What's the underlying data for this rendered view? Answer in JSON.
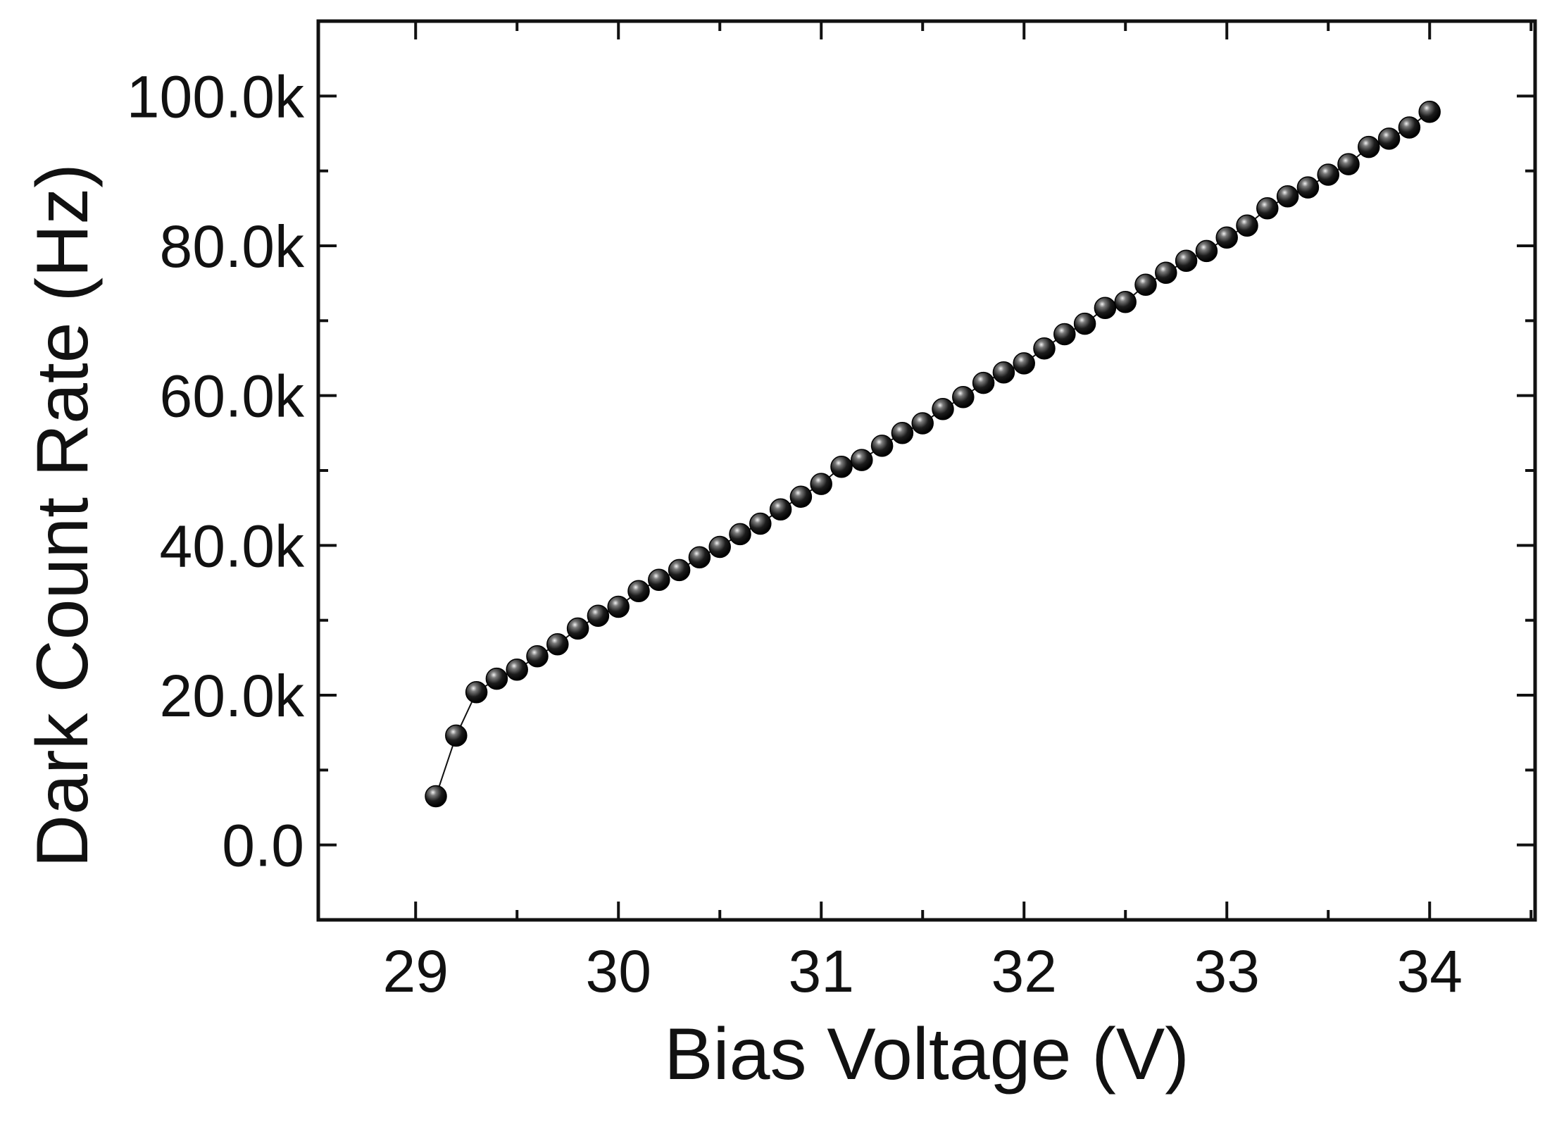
{
  "chart_data": {
    "type": "scatter",
    "title": "",
    "xlabel": "Bias Voltage (V)",
    "ylabel": "Dark Count Rate (Hz)",
    "xlim": [
      28.52,
      34.52
    ],
    "ylim": [
      -10000,
      110000
    ],
    "x_ticks": [
      {
        "value": 29,
        "label": "29"
      },
      {
        "value": 30,
        "label": "30"
      },
      {
        "value": 31,
        "label": "31"
      },
      {
        "value": 32,
        "label": "32"
      },
      {
        "value": 33,
        "label": "33"
      },
      {
        "value": 34,
        "label": "34"
      }
    ],
    "y_ticks": [
      {
        "value": 0,
        "label": "0.0"
      },
      {
        "value": 20000,
        "label": "20.0k"
      },
      {
        "value": 40000,
        "label": "40.0k"
      },
      {
        "value": 60000,
        "label": "60.0k"
      },
      {
        "value": 80000,
        "label": "80.0k"
      },
      {
        "value": 100000,
        "label": "100.0k"
      }
    ],
    "x_minor_step": 0.5,
    "y_minor_step": 10000,
    "grid": false,
    "legend": "none",
    "connecting_line": true,
    "marker": "sphere",
    "colors": {
      "marker": "#111111",
      "line": "#111111",
      "axis": "#111111"
    },
    "series": [
      {
        "x": [
          29.1,
          29.2,
          29.3,
          29.4,
          29.5,
          29.6,
          29.7,
          29.8,
          29.9,
          30.0,
          30.1,
          30.2,
          30.3,
          30.4,
          30.5,
          30.6,
          30.7,
          30.8,
          30.9,
          31.0,
          31.1,
          31.2,
          31.3,
          31.4,
          31.5,
          31.6,
          31.7,
          31.8,
          31.9,
          32.0,
          32.1,
          32.2,
          32.3,
          32.4,
          32.5,
          32.6,
          32.7,
          32.8,
          32.9,
          33.0,
          33.1,
          33.2,
          33.3,
          33.4,
          33.5,
          33.6,
          33.7,
          33.8,
          33.9,
          34.0
        ],
        "y": [
          6500,
          14600,
          20400,
          22200,
          23400,
          25200,
          26800,
          28900,
          30600,
          31800,
          33900,
          35400,
          36700,
          38400,
          39800,
          41500,
          42900,
          44800,
          46500,
          48200,
          50500,
          51400,
          53300,
          55000,
          56300,
          58200,
          59800,
          61700,
          63100,
          64300,
          66300,
          68200,
          69600,
          71700,
          72500,
          74800,
          76400,
          78000,
          79300,
          81100,
          82700,
          85000,
          86600,
          87800,
          89500,
          90900,
          93200,
          94300,
          95800,
          97900
        ]
      }
    ]
  }
}
